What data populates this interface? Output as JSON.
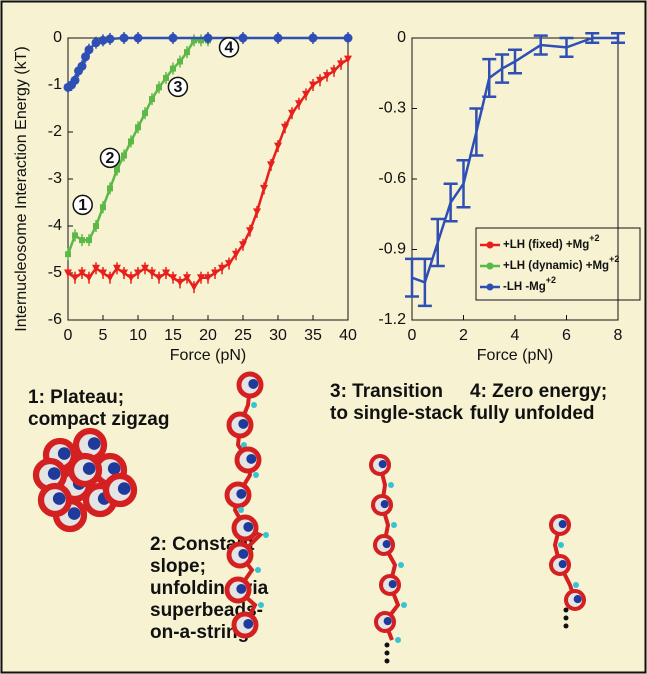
{
  "chart_data": [
    {
      "type": "line",
      "xlabel": "Force (pN)",
      "ylabel": "Internucleosome Interaction Energy (kT)",
      "xlim": [
        0,
        40
      ],
      "xticks": [
        0,
        5,
        10,
        15,
        20,
        25,
        30,
        35,
        40
      ],
      "ylim": [
        -6,
        0
      ],
      "yticks": [
        -6,
        -5,
        -4,
        -3,
        -2,
        -1,
        0
      ],
      "annotations": [
        "1",
        "2",
        "3",
        "4"
      ],
      "series": [
        {
          "name": "+LH (fixed) +Mg",
          "name_superscript": "+2",
          "color": "#e8201c",
          "marker": "triangle",
          "x": [
            0,
            1,
            2,
            3,
            4,
            5,
            6,
            7,
            8,
            9,
            10,
            11,
            12,
            13,
            14,
            15,
            16,
            17,
            18,
            19,
            20,
            21,
            22,
            23,
            24,
            25,
            26,
            27,
            28,
            29,
            30,
            31,
            32,
            33,
            34,
            35,
            36,
            37,
            38,
            39,
            40
          ],
          "values": [
            -5.0,
            -5.1,
            -5.0,
            -5.1,
            -4.9,
            -5.0,
            -5.1,
            -4.9,
            -5.0,
            -5.1,
            -5.0,
            -4.9,
            -5.0,
            -5.1,
            -5.0,
            -5.1,
            -5.2,
            -5.1,
            -5.3,
            -5.1,
            -5.1,
            -5.0,
            -4.9,
            -4.8,
            -4.6,
            -4.4,
            -4.1,
            -3.7,
            -3.2,
            -2.7,
            -2.3,
            -1.9,
            -1.6,
            -1.4,
            -1.2,
            -1.0,
            -0.9,
            -0.8,
            -0.7,
            -0.55,
            -0.45
          ]
        },
        {
          "name": "+LH (dynamic) +Mg",
          "name_superscript": "+2",
          "color": "#5cb947",
          "marker": "square",
          "x": [
            0,
            1,
            2,
            3,
            4,
            5,
            6,
            7,
            8,
            9,
            10,
            11,
            12,
            13,
            14,
            15,
            16,
            17,
            18,
            19,
            20
          ],
          "values": [
            -4.6,
            -4.2,
            -4.3,
            -4.3,
            -4.0,
            -3.6,
            -3.2,
            -2.8,
            -2.5,
            -2.2,
            -1.9,
            -1.6,
            -1.3,
            -1.05,
            -0.85,
            -0.65,
            -0.5,
            -0.3,
            -0.05,
            -0.05,
            -0.05
          ]
        },
        {
          "name": "-LH -Mg",
          "name_superscript": "+2",
          "color": "#2f4fb5",
          "marker": "circle",
          "x": [
            0,
            0.5,
            1,
            1.5,
            2,
            2.5,
            3,
            4,
            5,
            6,
            8,
            10,
            15,
            20,
            25,
            30,
            35,
            40
          ],
          "values": [
            -1.05,
            -1.0,
            -0.9,
            -0.7,
            -0.6,
            -0.4,
            -0.25,
            -0.1,
            -0.05,
            -0.02,
            0,
            0,
            0,
            0,
            0,
            0,
            0,
            0
          ]
        }
      ]
    },
    {
      "type": "errorbar",
      "xlabel": "Force (pN)",
      "xlim": [
        0,
        8
      ],
      "xticks": [
        0,
        2,
        4,
        6,
        8
      ],
      "ylim": [
        -1.2,
        0
      ],
      "yticks": [
        -1.2,
        -0.9,
        -0.6,
        -0.3,
        0
      ],
      "series": [
        {
          "color": "#2f4fb5",
          "x": [
            0,
            0.5,
            1,
            1.5,
            2,
            2.5,
            3,
            3.5,
            4,
            5,
            6,
            7,
            8
          ],
          "values": [
            -1.02,
            -1.04,
            -0.87,
            -0.7,
            -0.62,
            -0.4,
            -0.17,
            -0.13,
            -0.1,
            -0.03,
            -0.04,
            0,
            0
          ],
          "errors": [
            0.08,
            0.1,
            0.1,
            0.08,
            0.1,
            0.1,
            0.08,
            0.06,
            0.05,
            0.04,
            0.04,
            0.02,
            0.02
          ]
        }
      ]
    }
  ],
  "illustrations": {
    "captions": [
      [
        "1: Plateau;",
        "compact zigzag"
      ],
      [
        "2: Constant",
        "slope;",
        "unfolding via",
        "superbeads-",
        "on-a-string"
      ],
      [
        "3: Transition",
        "to single-stack"
      ],
      [
        "4: Zero energy;",
        "fully unfolded"
      ]
    ]
  }
}
